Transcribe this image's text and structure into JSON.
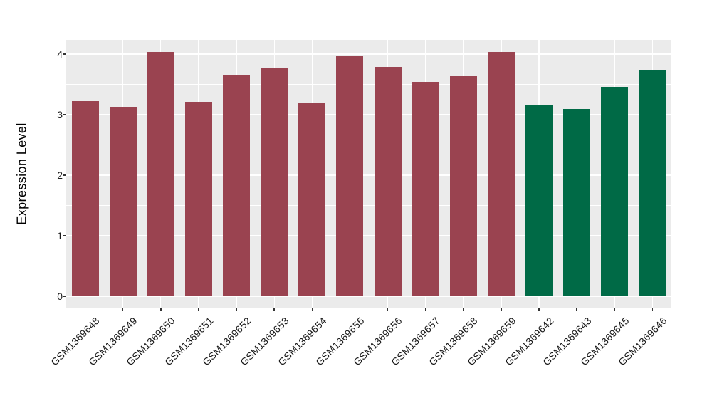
{
  "chart_data": {
    "type": "bar",
    "title": "",
    "ylabel": "Expression Level",
    "xlabel": "",
    "y_ticks": [
      0,
      1,
      2,
      3,
      4
    ],
    "y_minor_ticks": [
      0.5,
      1.5,
      2.5,
      3.5
    ],
    "ylim_display": [
      -0.19,
      4.23
    ],
    "grid": "on",
    "legend": "none",
    "panel_bg": "#EBEBEB",
    "grid_color": "#FFFFFF",
    "axis_text_color": "#1A1A1A",
    "tick_mark_color": "#333333",
    "group_colors": {
      "group1": "#9A4350",
      "group2": "#006A46"
    },
    "bars": [
      {
        "label": "GSM1369648",
        "value": 3.22,
        "group": "group1"
      },
      {
        "label": "GSM1369649",
        "value": 3.13,
        "group": "group1"
      },
      {
        "label": "GSM1369650",
        "value": 4.04,
        "group": "group1"
      },
      {
        "label": "GSM1369651",
        "value": 3.21,
        "group": "group1"
      },
      {
        "label": "GSM1369652",
        "value": 3.66,
        "group": "group1"
      },
      {
        "label": "GSM1369653",
        "value": 3.76,
        "group": "group1"
      },
      {
        "label": "GSM1369654",
        "value": 3.2,
        "group": "group1"
      },
      {
        "label": "GSM1369655",
        "value": 3.96,
        "group": "group1"
      },
      {
        "label": "GSM1369656",
        "value": 3.79,
        "group": "group1"
      },
      {
        "label": "GSM1369657",
        "value": 3.54,
        "group": "group1"
      },
      {
        "label": "GSM1369658",
        "value": 3.63,
        "group": "group1"
      },
      {
        "label": "GSM1369659",
        "value": 4.03,
        "group": "group1"
      },
      {
        "label": "GSM1369642",
        "value": 3.15,
        "group": "group2"
      },
      {
        "label": "GSM1369643",
        "value": 3.1,
        "group": "group2"
      },
      {
        "label": "GSM1369645",
        "value": 3.46,
        "group": "group2"
      },
      {
        "label": "GSM1369646",
        "value": 3.74,
        "group": "group2"
      }
    ]
  }
}
